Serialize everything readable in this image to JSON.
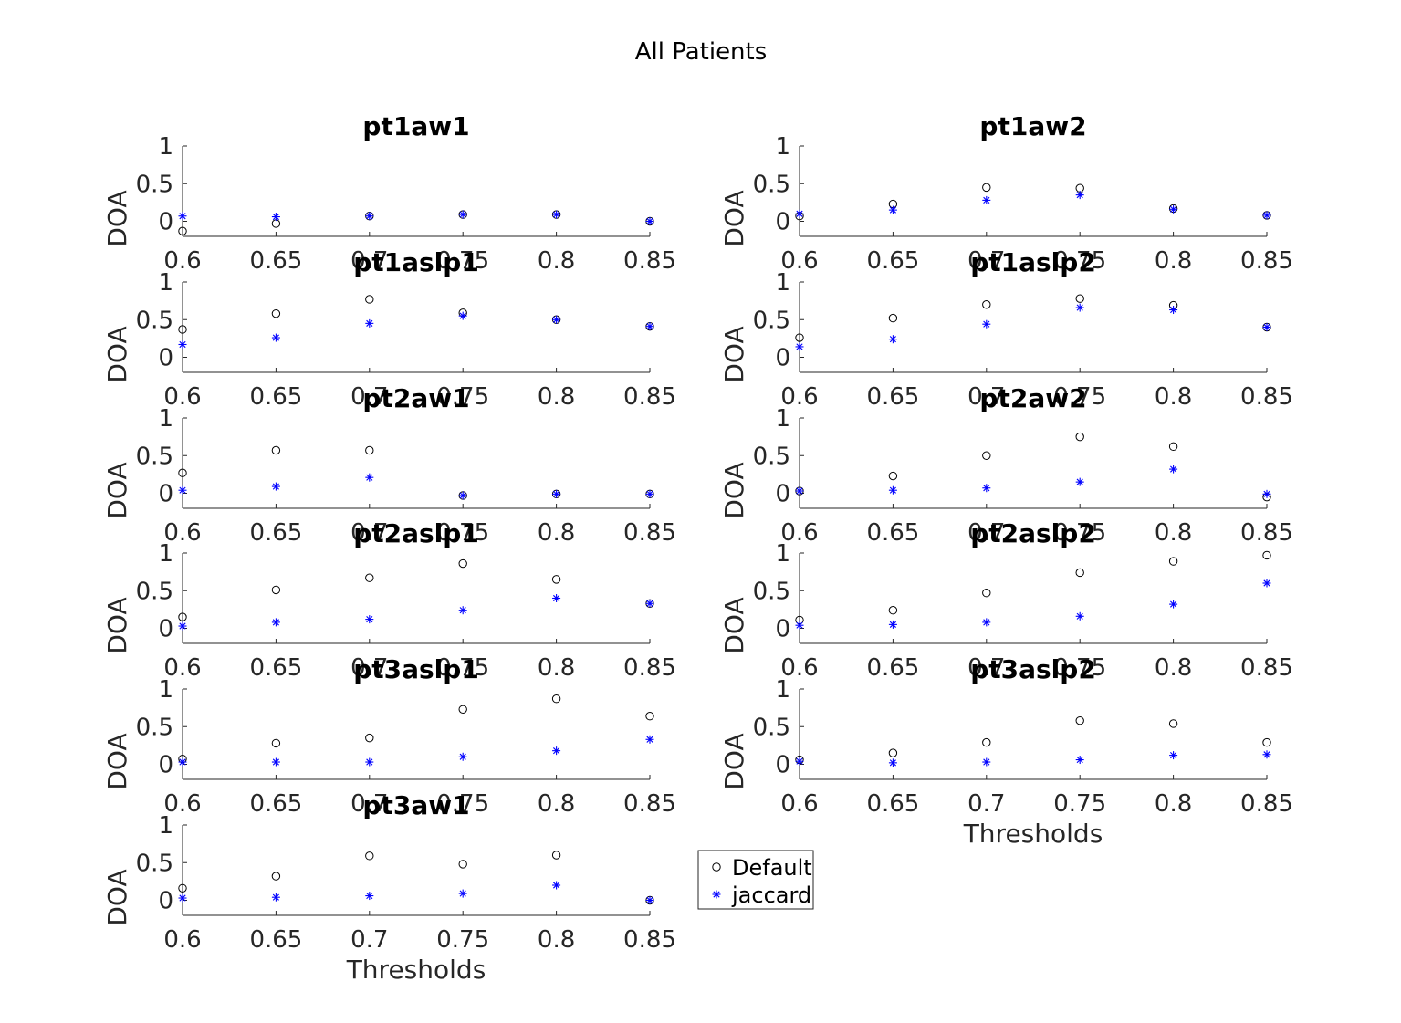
{
  "chart_data": {
    "type": "scatter",
    "title": "All Patients",
    "x_ticks": [
      "0.6",
      "0.65",
      "0.7",
      "0.75",
      "0.8",
      "0.85"
    ],
    "y_ticks": [
      "0",
      "0.5",
      "1"
    ],
    "ylim": [
      -0.2,
      1
    ],
    "xlim": [
      0.6,
      0.85
    ],
    "axis_color": "#262626",
    "legend": {
      "position": "right of bottom-left panel",
      "entries": [
        {
          "label": "Default",
          "marker": "circle",
          "color": "#000000"
        },
        {
          "label": "jaccard",
          "marker": "asterisk",
          "color": "#0000ff"
        }
      ]
    },
    "panels": [
      {
        "title": "pt1aw1",
        "ylabel": "DOA",
        "xlabel": "",
        "series": [
          {
            "name": "Default",
            "x": [
              0.6,
              0.65,
              0.7,
              0.75,
              0.8,
              0.85
            ],
            "y": [
              -0.13,
              -0.03,
              0.07,
              0.09,
              0.09,
              0.0
            ]
          },
          {
            "name": "jaccard",
            "x": [
              0.6,
              0.65,
              0.7,
              0.75,
              0.8,
              0.85
            ],
            "y": [
              0.07,
              0.06,
              0.07,
              0.09,
              0.09,
              0.0
            ]
          }
        ]
      },
      {
        "title": "pt1aw2",
        "ylabel": "DOA",
        "xlabel": "",
        "series": [
          {
            "name": "Default",
            "x": [
              0.6,
              0.65,
              0.7,
              0.75,
              0.8,
              0.85
            ],
            "y": [
              0.07,
              0.23,
              0.45,
              0.44,
              0.17,
              0.08
            ]
          },
          {
            "name": "jaccard",
            "x": [
              0.6,
              0.65,
              0.7,
              0.75,
              0.8,
              0.85
            ],
            "y": [
              0.1,
              0.15,
              0.28,
              0.35,
              0.16,
              0.08
            ]
          }
        ]
      },
      {
        "title": "pt1aslp1",
        "ylabel": "DOA",
        "xlabel": "",
        "series": [
          {
            "name": "Default",
            "x": [
              0.6,
              0.65,
              0.7,
              0.75,
              0.8,
              0.85
            ],
            "y": [
              0.37,
              0.58,
              0.77,
              0.59,
              0.5,
              0.41
            ]
          },
          {
            "name": "jaccard",
            "x": [
              0.6,
              0.65,
              0.7,
              0.75,
              0.8,
              0.85
            ],
            "y": [
              0.17,
              0.26,
              0.45,
              0.55,
              0.5,
              0.41
            ]
          }
        ]
      },
      {
        "title": "pt1aslp2",
        "ylabel": "DOA",
        "xlabel": "",
        "series": [
          {
            "name": "Default",
            "x": [
              0.6,
              0.65,
              0.7,
              0.75,
              0.8,
              0.85
            ],
            "y": [
              0.26,
              0.52,
              0.7,
              0.78,
              0.69,
              0.4
            ]
          },
          {
            "name": "jaccard",
            "x": [
              0.6,
              0.65,
              0.7,
              0.75,
              0.8,
              0.85
            ],
            "y": [
              0.14,
              0.24,
              0.44,
              0.66,
              0.63,
              0.4
            ]
          }
        ]
      },
      {
        "title": "pt2aw1",
        "ylabel": "DOA",
        "xlabel": "",
        "series": [
          {
            "name": "Default",
            "x": [
              0.6,
              0.65,
              0.7,
              0.75,
              0.8,
              0.85
            ],
            "y": [
              0.27,
              0.57,
              0.57,
              -0.03,
              -0.01,
              -0.01
            ]
          },
          {
            "name": "jaccard",
            "x": [
              0.6,
              0.65,
              0.7,
              0.75,
              0.8,
              0.85
            ],
            "y": [
              0.04,
              0.09,
              0.21,
              -0.03,
              -0.01,
              -0.01
            ]
          }
        ]
      },
      {
        "title": "pt2aw2",
        "ylabel": "DOA",
        "xlabel": "",
        "series": [
          {
            "name": "Default",
            "x": [
              0.6,
              0.65,
              0.7,
              0.75,
              0.8,
              0.85
            ],
            "y": [
              0.03,
              0.23,
              0.5,
              0.75,
              0.62,
              -0.05
            ]
          },
          {
            "name": "jaccard",
            "x": [
              0.6,
              0.65,
              0.7,
              0.75,
              0.8,
              0.85
            ],
            "y": [
              0.03,
              0.04,
              0.07,
              0.15,
              0.32,
              -0.01
            ]
          }
        ]
      },
      {
        "title": "pt2aslp1",
        "ylabel": "DOA",
        "xlabel": "",
        "series": [
          {
            "name": "Default",
            "x": [
              0.6,
              0.65,
              0.7,
              0.75,
              0.8,
              0.85
            ],
            "y": [
              0.15,
              0.51,
              0.67,
              0.86,
              0.65,
              0.33
            ]
          },
          {
            "name": "jaccard",
            "x": [
              0.6,
              0.65,
              0.7,
              0.75,
              0.8,
              0.85
            ],
            "y": [
              0.03,
              0.08,
              0.12,
              0.24,
              0.4,
              0.33
            ]
          }
        ]
      },
      {
        "title": "pt2aslp2",
        "ylabel": "DOA",
        "xlabel": "",
        "series": [
          {
            "name": "Default",
            "x": [
              0.6,
              0.65,
              0.7,
              0.75,
              0.8,
              0.85
            ],
            "y": [
              0.11,
              0.24,
              0.47,
              0.74,
              0.89,
              0.97
            ]
          },
          {
            "name": "jaccard",
            "x": [
              0.6,
              0.65,
              0.7,
              0.75,
              0.8,
              0.85
            ],
            "y": [
              0.04,
              0.05,
              0.08,
              0.16,
              0.32,
              0.6
            ]
          }
        ]
      },
      {
        "title": "pt3aslp1",
        "ylabel": "DOA",
        "xlabel": "",
        "series": [
          {
            "name": "Default",
            "x": [
              0.6,
              0.65,
              0.7,
              0.75,
              0.8,
              0.85
            ],
            "y": [
              0.07,
              0.28,
              0.35,
              0.73,
              0.87,
              0.64
            ]
          },
          {
            "name": "jaccard",
            "x": [
              0.6,
              0.65,
              0.7,
              0.75,
              0.8,
              0.85
            ],
            "y": [
              0.03,
              0.03,
              0.03,
              0.1,
              0.18,
              0.33
            ]
          }
        ]
      },
      {
        "title": "pt3aslp2",
        "ylabel": "DOA",
        "xlabel": "Thresholds",
        "series": [
          {
            "name": "Default",
            "x": [
              0.6,
              0.65,
              0.7,
              0.75,
              0.8,
              0.85
            ],
            "y": [
              0.06,
              0.15,
              0.29,
              0.58,
              0.54,
              0.29
            ]
          },
          {
            "name": "jaccard",
            "x": [
              0.6,
              0.65,
              0.7,
              0.75,
              0.8,
              0.85
            ],
            "y": [
              0.04,
              0.02,
              0.03,
              0.06,
              0.12,
              0.13
            ]
          }
        ]
      },
      {
        "title": "pt3aw1",
        "ylabel": "DOA",
        "xlabel": "Thresholds",
        "series": [
          {
            "name": "Default",
            "x": [
              0.6,
              0.65,
              0.7,
              0.75,
              0.8,
              0.85
            ],
            "y": [
              0.16,
              0.32,
              0.59,
              0.48,
              0.6,
              0.0
            ]
          },
          {
            "name": "jaccard",
            "x": [
              0.6,
              0.65,
              0.7,
              0.75,
              0.8,
              0.85
            ],
            "y": [
              0.03,
              0.04,
              0.06,
              0.09,
              0.2,
              0.0
            ]
          }
        ]
      }
    ]
  }
}
